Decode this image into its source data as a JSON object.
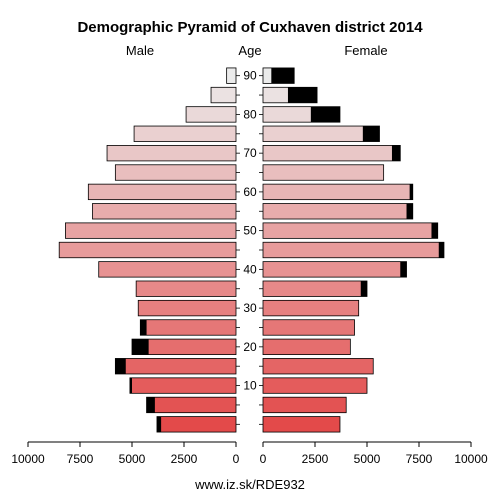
{
  "chart_data": {
    "type": "bar",
    "title": "Demographic Pyramid of Cuxhaven district 2014",
    "male_label": "Male",
    "female_label": "Female",
    "age_label": "Age",
    "age_ticks": [
      "10",
      "20",
      "30",
      "40",
      "50",
      "60",
      "70",
      "80",
      "90"
    ],
    "x_ticks_left": [
      "10000",
      "7500",
      "5000",
      "2500",
      "0"
    ],
    "x_ticks_right": [
      "0",
      "2500",
      "5000",
      "7500",
      "10000"
    ],
    "xlim": [
      0,
      10000
    ],
    "age_groups": [
      "0-4",
      "5-9",
      "10-14",
      "15-19",
      "20-24",
      "25-29",
      "30-34",
      "35-39",
      "40-44",
      "45-49",
      "50-54",
      "55-59",
      "60-64",
      "65-69",
      "70-74",
      "75-79",
      "80-84",
      "85-89",
      "90+"
    ],
    "male": {
      "total": [
        3800,
        4300,
        5100,
        5800,
        5000,
        4600,
        4700,
        4800,
        6600,
        8500,
        8200,
        6900,
        7100,
        5800,
        6200,
        4900,
        2400,
        1200,
        450
      ],
      "excess": [
        200,
        400,
        100,
        500,
        800,
        300,
        0,
        0,
        0,
        0,
        0,
        0,
        0,
        0,
        0,
        0,
        0,
        0,
        0
      ]
    },
    "female": {
      "total": [
        3700,
        4000,
        5000,
        5300,
        4200,
        4400,
        4600,
        5000,
        6900,
        8700,
        8400,
        7200,
        7200,
        5800,
        6600,
        5600,
        3700,
        2600,
        1500
      ],
      "excess": [
        0,
        0,
        0,
        0,
        0,
        0,
        0,
        300,
        300,
        250,
        300,
        300,
        150,
        0,
        400,
        800,
        1400,
        1400,
        1100
      ]
    },
    "excess_color": "#000000",
    "color_young": "#e34a4a",
    "color_old": "#ebebeb",
    "source": "www.iz.sk/RDE932"
  }
}
